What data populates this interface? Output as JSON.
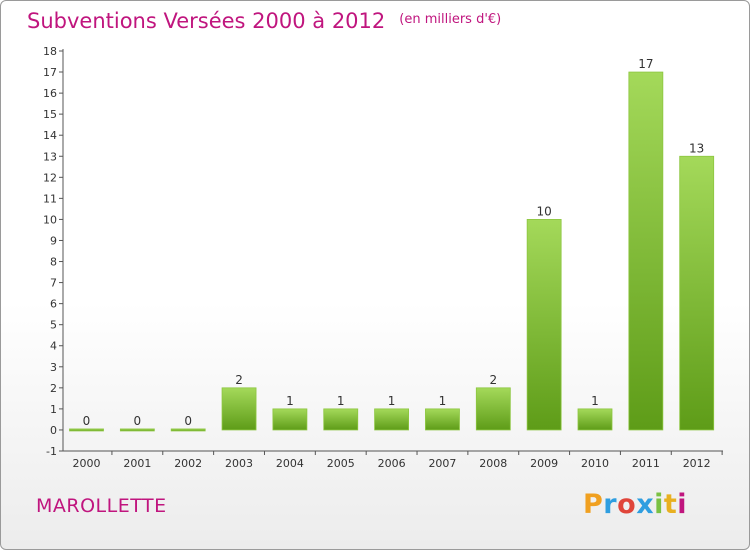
{
  "title": "Subventions Versées 2000 à 2012",
  "subtitle": "(en milliers d'€)",
  "commune": "MAROLLETTE",
  "logo": {
    "letters": [
      "P",
      "r",
      "o",
      "x",
      "i",
      "t",
      "i"
    ],
    "colors": [
      "#f0a020",
      "#2f9ee0",
      "#e0453a",
      "#2f9ee0",
      "#7ac143",
      "#e8b020",
      "#c0157e"
    ]
  },
  "colors": {
    "title": "#c0157e",
    "bar_light": "#a4d95a",
    "bar_dark": "#5e9c18",
    "axis": "#555555"
  },
  "chart_data": {
    "type": "bar",
    "title": "Subventions Versées 2000 à 2012",
    "subtitle": "(en milliers d'€)",
    "categories": [
      "2000",
      "2001",
      "2002",
      "2003",
      "2004",
      "2005",
      "2006",
      "2007",
      "2008",
      "2009",
      "2010",
      "2011",
      "2012"
    ],
    "values": [
      0,
      0,
      0,
      2,
      1,
      1,
      1,
      1,
      2,
      10,
      1,
      17,
      13
    ],
    "y_ticks": [
      -1,
      0,
      1,
      2,
      3,
      4,
      5,
      6,
      7,
      8,
      9,
      10,
      11,
      12,
      13,
      14,
      15,
      16,
      17,
      18
    ],
    "ylim": [
      -1,
      18
    ],
    "grid": false,
    "xlabel": "",
    "ylabel": ""
  }
}
